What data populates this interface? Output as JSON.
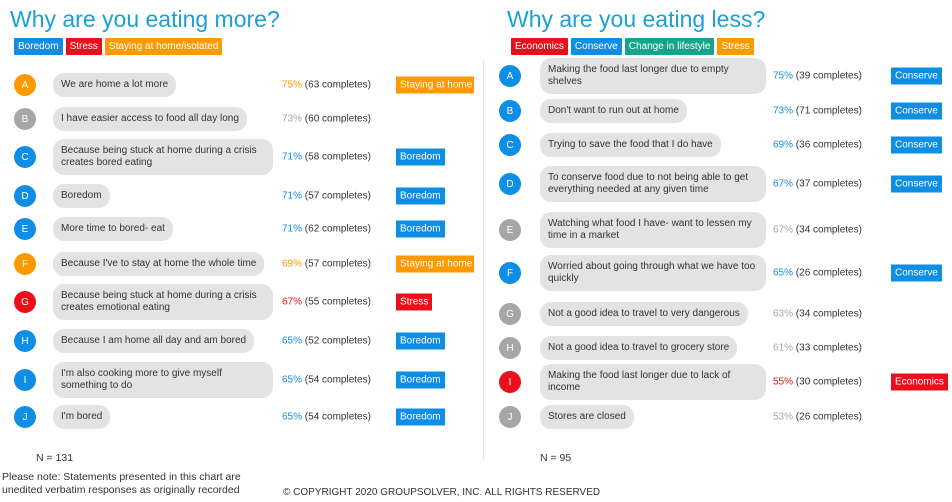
{
  "panels": [
    {
      "title": "Why are you eating more?",
      "legend": [
        {
          "label": "Boredom",
          "color": "#0f8ee6"
        },
        {
          "label": "Stress",
          "color": "#e8101a"
        },
        {
          "label": "Staying at home/isolated",
          "color": "#ff9900"
        }
      ],
      "rows": [
        {
          "letter": "A",
          "text": "We are home a lot more",
          "percent": "75%",
          "completes": "(63 completes)",
          "color": "#ff9900",
          "tag": "Staying at home"
        },
        {
          "letter": "B",
          "text": "I have easier access to food all day long",
          "percent": "73%",
          "completes": "(60 completes)",
          "color": "#a6a6a6"
        },
        {
          "letter": "C",
          "text": "Because being stuck at home during a crisis creates bored eating",
          "percent": "71%",
          "completes": "(58 completes)",
          "color": "#0f8ee6",
          "tag": "Boredom"
        },
        {
          "letter": "D",
          "text": "Boredom",
          "percent": "71%",
          "completes": "(57 completes)",
          "color": "#0f8ee6",
          "tag": "Boredom"
        },
        {
          "letter": "E",
          "text": "More time to bored- eat",
          "percent": "71%",
          "completes": "(62 completes)",
          "color": "#0f8ee6",
          "tag": "Boredom"
        },
        {
          "letter": "F",
          "text": "Because I've to stay at home the whole time",
          "percent": "69%",
          "completes": "(57 completes)",
          "color": "#ff9900",
          "tag": "Staying at home"
        },
        {
          "letter": "G",
          "text": "Because being stuck at home during a crisis creates emotional eating",
          "percent": "67%",
          "completes": "(55 completes)",
          "color": "#e8101a",
          "tag": "Stress"
        },
        {
          "letter": "H",
          "text": "Because I am home all day and am bored",
          "percent": "65%",
          "completes": "(52 completes)",
          "color": "#0f8ee6",
          "tag": "Boredom"
        },
        {
          "letter": "I",
          "text": "I'm also cooking more to give myself something to do",
          "percent": "65%",
          "completes": "(54 completes)",
          "color": "#0f8ee6",
          "tag": "Boredom"
        },
        {
          "letter": "J",
          "text": "I'm bored",
          "percent": "65%",
          "completes": "(54 completes)",
          "color": "#0f8ee6",
          "tag": "Boredom"
        }
      ],
      "n": "N = 131"
    },
    {
      "title": "Why are you eating less?",
      "legend": [
        {
          "label": "Economics",
          "color": "#e8101a"
        },
        {
          "label": "Conserve",
          "color": "#0f8ee6"
        },
        {
          "label": "Change in lifestyle",
          "color": "#14a68a"
        },
        {
          "label": "Stress",
          "color": "#ff9900"
        }
      ],
      "rows": [
        {
          "letter": "A",
          "text": "Making the food last longer due to empty shelves",
          "percent": "75%",
          "completes": "(39 completes)",
          "color": "#0f8ee6",
          "tag": "Conserve"
        },
        {
          "letter": "B",
          "text": "Don't want to run out at home",
          "percent": "73%",
          "completes": "(71 completes)",
          "color": "#0f8ee6",
          "tag": "Conserve"
        },
        {
          "letter": "C",
          "text": "Trying to save the food that I do have",
          "percent": "69%",
          "completes": "(36 completes)",
          "color": "#0f8ee6",
          "tag": "Conserve"
        },
        {
          "letter": "D",
          "text": "To conserve food due to not being able to get everything needed at any given time",
          "percent": "67%",
          "completes": "(37 completes)",
          "color": "#0f8ee6",
          "tag": "Conserve"
        },
        {
          "letter": "E",
          "text": "Watching what food I have- want to lessen my time in a market",
          "percent": "67%",
          "completes": "(34 completes)",
          "color": "#a6a6a6"
        },
        {
          "letter": "F",
          "text": "Worried about going through what we have too quickly",
          "percent": "65%",
          "completes": "(26 completes)",
          "color": "#0f8ee6",
          "tag": "Conserve"
        },
        {
          "letter": "G",
          "text": "Not a good idea to travel to very dangerous",
          "percent": "63%",
          "completes": "(34 completes)",
          "color": "#a6a6a6"
        },
        {
          "letter": "H",
          "text": "Not a good idea to travel to grocery store",
          "percent": "61%",
          "completes": "(33 completes)",
          "color": "#a6a6a6"
        },
        {
          "letter": "I",
          "text": "Making the food last longer due to lack of income",
          "percent": "55%",
          "completes": "(30 completes)",
          "color": "#e8101a",
          "tag": "Economics"
        },
        {
          "letter": "J",
          "text": "Stores are closed",
          "percent": "53%",
          "completes": "(26 completes)",
          "color": "#a6a6a6"
        }
      ],
      "n": "N = 95"
    }
  ],
  "note": "Please note: Statements presented in this chart are unedited verbatim responses as originally recorded",
  "copyright": "© COPYRIGHT 2020 GROUPSOLVER, INC. ALL RIGHTS RESERVED"
}
